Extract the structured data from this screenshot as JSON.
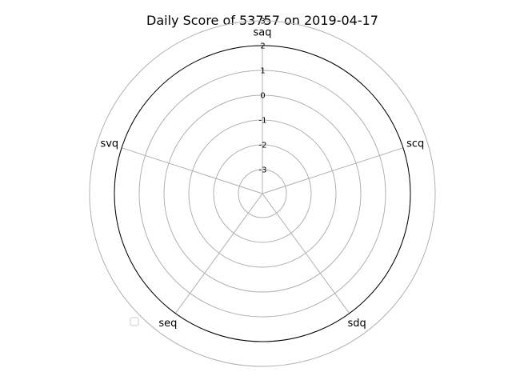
{
  "chart_data": {
    "type": "radar",
    "title": "Daily Score of 53757 on 2019-04-17",
    "axes": [
      "saq",
      "scq",
      "sdq",
      "seq",
      "svq"
    ],
    "rlim": [
      -3,
      3
    ],
    "radial_ticks": [
      "-3",
      "-2",
      "-1",
      "0",
      "1",
      "2",
      "3"
    ],
    "grid": true,
    "legend": {
      "placement": "lower-left",
      "entries": [
        ""
      ]
    },
    "series": [
      {
        "values": []
      }
    ]
  },
  "colors": {
    "frame": "#000000",
    "grid": "#b0b0b0",
    "legend_border": "#cccccc",
    "background": "#ffffff"
  }
}
